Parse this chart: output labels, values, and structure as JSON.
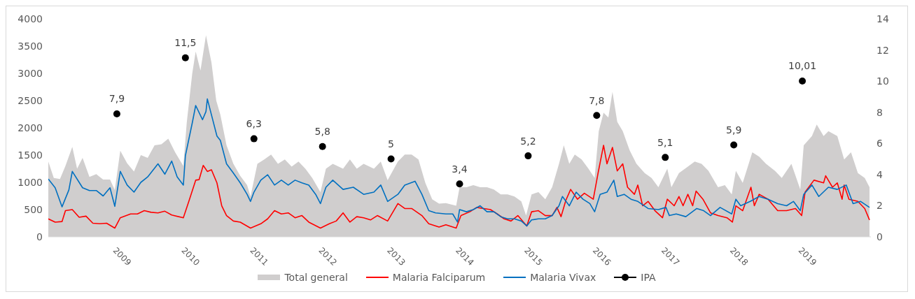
{
  "chart_data": {
    "type": "line",
    "xlim": [
      2008,
      2020
    ],
    "xticks": [
      2009,
      2010,
      2011,
      2012,
      2013,
      2014,
      2015,
      2016,
      2017,
      2018,
      2019
    ],
    "ylim": [
      0,
      4000
    ],
    "yticks": [
      0,
      500,
      1000,
      1500,
      2000,
      2500,
      3000,
      3500,
      4000
    ],
    "y2lim": [
      0,
      14
    ],
    "y2ticks": [
      0,
      2,
      4,
      6,
      8,
      10,
      12,
      14
    ],
    "grid": false,
    "legend": "bottom",
    "series": [
      {
        "name": "Total general",
        "type": "area",
        "color": "#d0cece",
        "x": [
          2008.0,
          2008.08,
          2008.17,
          2008.25,
          2008.35,
          2008.42,
          2008.5,
          2008.6,
          2008.7,
          2008.8,
          2008.9,
          2008.97,
          2009.05,
          2009.15,
          2009.25,
          2009.35,
          2009.45,
          2009.55,
          2009.65,
          2009.75,
          2009.85,
          2009.97,
          2010.02,
          2010.1,
          2010.15,
          2010.22,
          2010.3,
          2010.38,
          2010.45,
          2010.51,
          2010.6,
          2010.7,
          2010.8,
          2010.9,
          2010.95,
          2011.05,
          2011.15,
          2011.25,
          2011.35,
          2011.45,
          2011.55,
          2011.65,
          2011.75,
          2011.85,
          2011.97,
          2012.05,
          2012.15,
          2012.3,
          2012.4,
          2012.5,
          2012.6,
          2012.75,
          2012.85,
          2012.95,
          2013.1,
          2013.2,
          2013.3,
          2013.4,
          2013.5,
          2013.6,
          2013.7,
          2013.8,
          2013.95,
          2014.0,
          2014.1,
          2014.2,
          2014.3,
          2014.4,
          2014.5,
          2014.6,
          2014.7,
          2014.8,
          2014.9,
          2014.97,
          2015.05,
          2015.15,
          2015.25,
          2015.35,
          2015.45,
          2015.52,
          2015.6,
          2015.68,
          2015.78,
          2015.88,
          2015.97,
          2016.03,
          2016.1,
          2016.17,
          2016.23,
          2016.3,
          2016.38,
          2016.48,
          2016.58,
          2016.7,
          2016.8,
          2016.9,
          2017.03,
          2017.09,
          2017.2,
          2017.33,
          2017.43,
          2017.53,
          2017.63,
          2017.77,
          2017.87,
          2017.97,
          2018.03,
          2018.13,
          2018.27,
          2018.37,
          2018.47,
          2018.6,
          2018.7,
          2018.84,
          2018.97,
          2019.02,
          2019.14,
          2019.21,
          2019.31,
          2019.38,
          2019.51,
          2019.61,
          2019.71,
          2019.81,
          2019.91,
          2019.98
        ],
        "values": [
          1380,
          1080,
          1060,
          1300,
          1650,
          1250,
          1450,
          1100,
          1150,
          1050,
          1050,
          860,
          1580,
          1350,
          1200,
          1500,
          1450,
          1680,
          1700,
          1800,
          1550,
          1300,
          2100,
          3000,
          3400,
          3050,
          3700,
          3200,
          2500,
          2240,
          1680,
          1340,
          1120,
          950,
          740,
          1340,
          1420,
          1510,
          1340,
          1420,
          1290,
          1380,
          1250,
          1080,
          820,
          1250,
          1340,
          1250,
          1420,
          1250,
          1340,
          1250,
          1380,
          1040,
          1380,
          1510,
          1510,
          1420,
          990,
          690,
          610,
          620,
          570,
          910,
          910,
          950,
          910,
          910,
          870,
          780,
          780,
          740,
          650,
          390,
          780,
          820,
          690,
          910,
          1340,
          1680,
          1340,
          1510,
          1420,
          1250,
          1080,
          1940,
          2280,
          2190,
          2660,
          2110,
          1940,
          1590,
          1340,
          1170,
          1080,
          910,
          1250,
          910,
          1170,
          1290,
          1380,
          1340,
          1210,
          910,
          950,
          780,
          1210,
          990,
          1550,
          1470,
          1340,
          1210,
          1080,
          1340,
          870,
          1680,
          1850,
          2060,
          1850,
          1940,
          1850,
          1420,
          1550,
          1170,
          1080,
          910
        ]
      },
      {
        "name": "Malaria Falciparum",
        "color": "#ff0000",
        "x": [
          2008.0,
          2008.1,
          2008.2,
          2008.25,
          2008.35,
          2008.45,
          2008.55,
          2008.65,
          2008.75,
          2008.85,
          2008.97,
          2009.05,
          2009.2,
          2009.3,
          2009.4,
          2009.5,
          2009.6,
          2009.7,
          2009.8,
          2009.97,
          2010.05,
          2010.15,
          2010.2,
          2010.26,
          2010.32,
          2010.38,
          2010.46,
          2010.53,
          2010.6,
          2010.7,
          2010.8,
          2010.95,
          2011.1,
          2011.2,
          2011.3,
          2011.4,
          2011.5,
          2011.6,
          2011.7,
          2011.8,
          2011.97,
          2012.1,
          2012.2,
          2012.3,
          2012.4,
          2012.5,
          2012.6,
          2012.7,
          2012.8,
          2012.95,
          2013.1,
          2013.2,
          2013.3,
          2013.45,
          2013.55,
          2013.7,
          2013.8,
          2013.95,
          2014.02,
          2014.15,
          2014.25,
          2014.35,
          2014.45,
          2014.55,
          2014.65,
          2014.75,
          2014.85,
          2014.98,
          2015.05,
          2015.15,
          2015.25,
          2015.35,
          2015.42,
          2015.48,
          2015.55,
          2015.62,
          2015.72,
          2015.82,
          2015.95,
          2016.02,
          2016.1,
          2016.15,
          2016.23,
          2016.3,
          2016.38,
          2016.45,
          2016.55,
          2016.6,
          2016.67,
          2016.75,
          2016.85,
          2016.96,
          2017.03,
          2017.13,
          2017.2,
          2017.26,
          2017.33,
          2017.4,
          2017.45,
          2017.55,
          2017.66,
          2017.77,
          2017.9,
          2017.98,
          2018.03,
          2018.13,
          2018.25,
          2018.3,
          2018.37,
          2018.5,
          2018.64,
          2018.77,
          2018.9,
          2018.99,
          2019.04,
          2019.17,
          2019.31,
          2019.34,
          2019.44,
          2019.51,
          2019.58,
          2019.61,
          2019.68,
          2019.81,
          2019.91,
          2019.98
        ],
        "values": [
          330,
          270,
          280,
          480,
          500,
          360,
          380,
          250,
          240,
          250,
          160,
          350,
          420,
          420,
          480,
          450,
          440,
          470,
          400,
          350,
          650,
          1040,
          1050,
          1310,
          1200,
          1230,
          990,
          570,
          390,
          290,
          270,
          160,
          240,
          330,
          480,
          420,
          440,
          350,
          390,
          270,
          160,
          240,
          290,
          440,
          270,
          370,
          350,
          310,
          390,
          290,
          610,
          520,
          520,
          390,
          240,
          180,
          220,
          160,
          390,
          460,
          540,
          520,
          500,
          420,
          330,
          290,
          390,
          200,
          460,
          480,
          390,
          390,
          540,
          370,
          670,
          870,
          690,
          800,
          690,
          1170,
          1680,
          1340,
          1640,
          1210,
          1340,
          910,
          780,
          950,
          570,
          650,
          480,
          350,
          690,
          570,
          740,
          570,
          780,
          570,
          840,
          690,
          440,
          390,
          350,
          270,
          570,
          480,
          910,
          570,
          780,
          690,
          480,
          480,
          520,
          390,
          820,
          1040,
          990,
          1120,
          910,
          990,
          690,
          950,
          690,
          650,
          520,
          310
        ]
      },
      {
        "name": "Malaria Vivax",
        "color": "#0070c0",
        "x": [
          2008.0,
          2008.1,
          2008.2,
          2008.3,
          2008.35,
          2008.45,
          2008.5,
          2008.6,
          2008.7,
          2008.8,
          2008.9,
          2008.97,
          2009.05,
          2009.15,
          2009.25,
          2009.35,
          2009.45,
          2009.6,
          2009.7,
          2009.8,
          2009.88,
          2009.97,
          2010.0,
          2010.1,
          2010.15,
          2010.25,
          2010.3,
          2010.32,
          2010.46,
          2010.51,
          2010.6,
          2010.7,
          2010.8,
          2010.9,
          2010.95,
          2011.0,
          2011.1,
          2011.2,
          2011.3,
          2011.4,
          2011.5,
          2011.6,
          2011.7,
          2011.8,
          2011.9,
          2011.97,
          2012.05,
          2012.15,
          2012.3,
          2012.45,
          2012.6,
          2012.75,
          2012.85,
          2012.95,
          2013.1,
          2013.2,
          2013.35,
          2013.45,
          2013.55,
          2013.65,
          2013.8,
          2013.9,
          2013.97,
          2014.0,
          2014.1,
          2014.2,
          2014.3,
          2014.4,
          2014.5,
          2014.6,
          2014.7,
          2014.8,
          2014.9,
          2014.98,
          2015.05,
          2015.15,
          2015.25,
          2015.35,
          2015.45,
          2015.5,
          2015.6,
          2015.7,
          2015.8,
          2015.9,
          2015.97,
          2016.05,
          2016.15,
          2016.25,
          2016.3,
          2016.4,
          2016.5,
          2016.6,
          2016.75,
          2016.9,
          2017.01,
          2017.06,
          2017.16,
          2017.3,
          2017.46,
          2017.56,
          2017.66,
          2017.8,
          2017.97,
          2018.03,
          2018.1,
          2018.24,
          2018.37,
          2018.5,
          2018.64,
          2018.77,
          2018.87,
          2018.97,
          2019.02,
          2019.14,
          2019.24,
          2019.38,
          2019.51,
          2019.64,
          2019.74,
          2019.85,
          2019.98
        ],
        "values": [
          1060,
          900,
          550,
          860,
          1200,
          1000,
          900,
          850,
          850,
          750,
          900,
          560,
          1200,
          950,
          820,
          1000,
          1100,
          1340,
          1150,
          1390,
          1100,
          950,
          1490,
          2090,
          2410,
          2150,
          2300,
          2530,
          1850,
          1770,
          1340,
          1170,
          990,
          780,
          650,
          820,
          1040,
          1140,
          950,
          1040,
          950,
          1040,
          990,
          950,
          780,
          610,
          910,
          1040,
          870,
          910,
          780,
          820,
          950,
          650,
          780,
          950,
          1020,
          780,
          480,
          440,
          420,
          420,
          270,
          500,
          460,
          500,
          570,
          460,
          460,
          370,
          330,
          330,
          290,
          200,
          310,
          330,
          330,
          390,
          570,
          740,
          570,
          820,
          690,
          610,
          460,
          780,
          820,
          1040,
          740,
          780,
          690,
          650,
          520,
          500,
          540,
          390,
          420,
          370,
          520,
          480,
          390,
          540,
          420,
          690,
          570,
          650,
          740,
          690,
          610,
          570,
          650,
          480,
          780,
          950,
          740,
          910,
          870,
          950,
          610,
          650,
          540
        ]
      },
      {
        "name": "IPA",
        "type": "scatter",
        "axis": "y2",
        "marker": "circle",
        "color": "#000000",
        "x": [
          2009,
          2010,
          2011,
          2012,
          2013,
          2014,
          2015,
          2016,
          2017,
          2018,
          2019
        ],
        "values": [
          7.9,
          11.5,
          6.3,
          5.8,
          5,
          3.4,
          5.2,
          7.8,
          5.1,
          5.9,
          10.01
        ],
        "value_labels": [
          "7,9",
          "11,5",
          "6,3",
          "5,8",
          "5",
          "3,4",
          "5,2",
          "7,8",
          "5,1",
          "5,9",
          "10,01"
        ]
      }
    ]
  }
}
